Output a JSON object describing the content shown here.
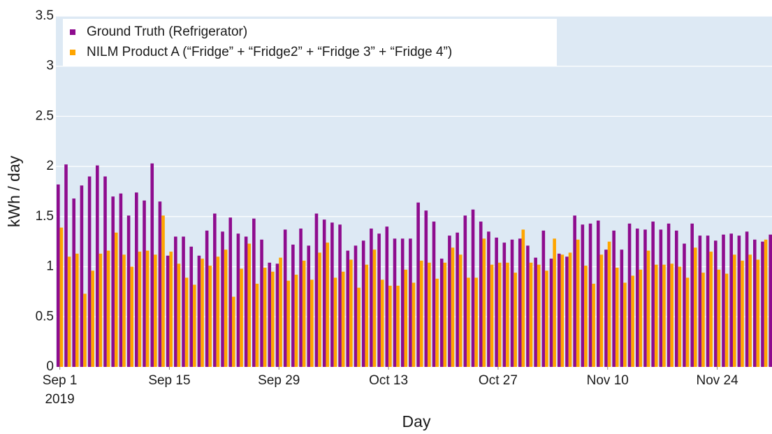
{
  "chart_data": {
    "type": "bar",
    "x_label": "Day",
    "y_label": "kWh / day",
    "x": [
      "2019-09-01",
      "2019-09-02",
      "2019-09-03",
      "2019-09-04",
      "2019-09-05",
      "2019-09-06",
      "2019-09-07",
      "2019-09-08",
      "2019-09-09",
      "2019-09-10",
      "2019-09-11",
      "2019-09-12",
      "2019-09-13",
      "2019-09-14",
      "2019-09-15",
      "2019-09-16",
      "2019-09-17",
      "2019-09-18",
      "2019-09-19",
      "2019-09-20",
      "2019-09-21",
      "2019-09-22",
      "2019-09-23",
      "2019-09-24",
      "2019-09-25",
      "2019-09-26",
      "2019-09-27",
      "2019-09-28",
      "2019-09-29",
      "2019-09-30",
      "2019-10-01",
      "2019-10-02",
      "2019-10-03",
      "2019-10-04",
      "2019-10-05",
      "2019-10-06",
      "2019-10-07",
      "2019-10-08",
      "2019-10-09",
      "2019-10-10",
      "2019-10-11",
      "2019-10-12",
      "2019-10-13",
      "2019-10-14",
      "2019-10-15",
      "2019-10-16",
      "2019-10-17",
      "2019-10-18",
      "2019-10-19",
      "2019-10-20",
      "2019-10-21",
      "2019-10-22",
      "2019-10-23",
      "2019-10-24",
      "2019-10-25",
      "2019-10-26",
      "2019-10-27",
      "2019-10-28",
      "2019-10-29",
      "2019-10-30",
      "2019-10-31",
      "2019-11-01",
      "2019-11-02",
      "2019-11-03",
      "2019-11-04",
      "2019-11-05",
      "2019-11-06",
      "2019-11-07",
      "2019-11-08",
      "2019-11-09",
      "2019-11-10",
      "2019-11-11",
      "2019-11-12",
      "2019-11-13",
      "2019-11-14",
      "2019-11-15",
      "2019-11-16",
      "2019-11-17",
      "2019-11-18",
      "2019-11-19",
      "2019-11-20",
      "2019-11-21",
      "2019-11-22",
      "2019-11-23",
      "2019-11-24",
      "2019-11-25",
      "2019-11-26",
      "2019-11-27",
      "2019-11-28",
      "2019-11-29",
      "2019-11-30",
      "2019-12-01"
    ],
    "series": [
      {
        "name": "Ground Truth (Refrigerator)",
        "color": "#8e0c8e",
        "values": [
          1.82,
          2.02,
          1.68,
          1.81,
          1.9,
          2.01,
          1.9,
          1.7,
          1.73,
          1.51,
          1.74,
          1.66,
          2.03,
          1.65,
          1.11,
          1.3,
          1.3,
          1.2,
          1.11,
          1.36,
          1.53,
          1.35,
          1.49,
          1.33,
          1.3,
          1.48,
          1.27,
          1.04,
          1.03,
          1.37,
          1.22,
          1.38,
          1.21,
          1.53,
          1.47,
          1.44,
          1.42,
          1.16,
          1.21,
          1.26,
          1.38,
          1.33,
          1.4,
          1.28,
          1.28,
          1.28,
          1.64,
          1.56,
          1.45,
          1.08,
          1.31,
          1.34,
          1.51,
          1.57,
          1.45,
          1.35,
          1.29,
          1.24,
          1.27,
          1.28,
          1.21,
          1.09,
          1.36,
          1.08,
          1.13,
          1.1,
          1.51,
          1.42,
          1.43,
          1.46,
          1.17,
          1.36,
          1.17,
          1.43,
          1.38,
          1.37,
          1.45,
          1.37,
          1.43,
          1.36,
          1.23,
          1.43,
          1.31,
          1.31,
          1.26,
          1.32,
          1.33,
          1.31,
          1.35,
          1.27,
          1.25,
          1.32
        ]
      },
      {
        "name": "NILM Product A (“Fridge” + “Fridge2” + “Fridge 3” + “Fridge 4”)",
        "color": "#ffa500",
        "values": [
          1.39,
          1.1,
          1.13,
          0.73,
          0.96,
          1.13,
          1.16,
          1.34,
          1.12,
          1.0,
          1.15,
          1.16,
          1.12,
          1.51,
          1.15,
          1.03,
          0.89,
          0.82,
          1.08,
          1.01,
          1.1,
          1.17,
          0.7,
          0.98,
          1.23,
          0.83,
          0.99,
          0.95,
          1.09,
          0.86,
          0.92,
          1.06,
          0.87,
          1.14,
          1.24,
          0.89,
          0.95,
          1.07,
          0.79,
          1.02,
          1.17,
          0.87,
          0.81,
          0.81,
          0.97,
          0.84,
          1.06,
          1.04,
          0.88,
          1.04,
          1.19,
          1.12,
          0.89,
          0.89,
          1.28,
          1.02,
          1.04,
          1.04,
          0.94,
          1.37,
          1.04,
          1.02,
          0.96,
          1.28,
          1.12,
          1.14,
          1.27,
          1.01,
          0.83,
          1.12,
          1.25,
          0.99,
          0.84,
          0.91,
          0.97,
          1.16,
          1.02,
          1.02,
          1.03,
          1.0,
          0.89,
          1.19,
          0.94,
          1.15,
          0.97,
          0.93,
          1.12,
          1.06,
          1.12,
          1.07,
          1.27,
          null
        ]
      }
    ],
    "xlim": [
      "2019-08-31T12:00Z",
      "2019-12-01T00:00Z"
    ],
    "xticks": [
      {
        "value": "2019-09-01",
        "label": "Sep 1",
        "sublabel": "2019"
      },
      {
        "value": "2019-09-15",
        "label": "Sep 15"
      },
      {
        "value": "2019-09-29",
        "label": "Sep 29"
      },
      {
        "value": "2019-10-13",
        "label": "Oct 13"
      },
      {
        "value": "2019-10-27",
        "label": "Oct 27"
      },
      {
        "value": "2019-11-10",
        "label": "Nov 10"
      },
      {
        "value": "2019-11-24",
        "label": "Nov 24"
      }
    ],
    "ylim": [
      0,
      3.5
    ],
    "yticks": [
      0,
      0.5,
      1,
      1.5,
      2,
      2.5,
      3,
      3.5
    ],
    "grid": true,
    "legend": "top-left"
  }
}
